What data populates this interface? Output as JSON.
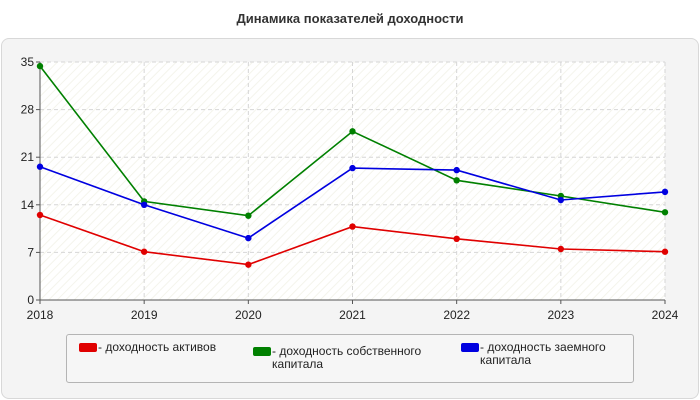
{
  "title": "Динамика показателей доходности",
  "chart_data": {
    "type": "line",
    "title": "Динамика показателей доходности",
    "x": [
      "2018",
      "2019",
      "2020",
      "2021",
      "2022",
      "2023",
      "2024"
    ],
    "ylim": [
      0,
      35
    ],
    "yticks": [
      0,
      7,
      14,
      21,
      28,
      35
    ],
    "grid": true,
    "legend_position": "bottom",
    "series": [
      {
        "name": "- доходность активов",
        "color": "#e00000",
        "values": [
          12.5,
          7.1,
          5.2,
          10.8,
          9.0,
          7.5,
          7.1
        ]
      },
      {
        "name": "- доходность собственного капитала",
        "color": "#008000",
        "values": [
          34.4,
          14.5,
          12.4,
          24.8,
          17.6,
          15.3,
          12.9
        ]
      },
      {
        "name": "- доходность заемного капитала",
        "color": "#0000e0",
        "values": [
          19.6,
          14.0,
          9.1,
          19.4,
          19.1,
          14.7,
          15.9
        ]
      }
    ]
  }
}
